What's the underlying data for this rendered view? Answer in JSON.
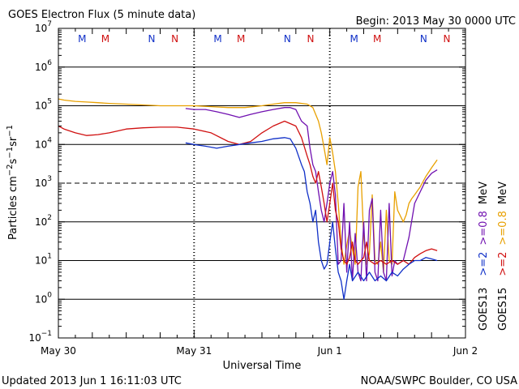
{
  "header": {
    "title": "GOES Electron Flux (5 minute data)",
    "begin": "Begin: 2013 May 30 0000 UTC"
  },
  "footer": {
    "updated": "Updated 2013 Jun  1 16:11:03 UTC",
    "credit": "NOAA/SWPC Boulder, CO USA"
  },
  "chart_data": {
    "type": "line",
    "title": "GOES Electron Flux (5 minute data)",
    "xlabel": "Universal Time",
    "ylabel": "Particles cm⁻²s⁻¹sr⁻¹",
    "yscale": "log",
    "ylim": [
      0.1,
      10000000
    ],
    "xlim": [
      0,
      72
    ],
    "x_units": "hours since 2013 May 30 0000 UTC",
    "x_ticks": [
      {
        "x": 0,
        "label": "May 30"
      },
      {
        "x": 24,
        "label": "May 31"
      },
      {
        "x": 48,
        "label": "Jun 1"
      },
      {
        "x": 72,
        "label": "Jun 2"
      }
    ],
    "y_ticks": [
      {
        "exp": 7
      },
      {
        "exp": 6
      },
      {
        "exp": 5
      },
      {
        "exp": 4
      },
      {
        "exp": 3
      },
      {
        "exp": 2
      },
      {
        "exp": 1
      },
      {
        "exp": 0
      },
      {
        "exp": -1
      }
    ],
    "threshold_line": 1000,
    "grid": true,
    "markers": [
      {
        "x": 4.2,
        "label": "M",
        "color": "#1030c8"
      },
      {
        "x": 8.3,
        "label": "M",
        "color": "#d01010"
      },
      {
        "x": 16.5,
        "label": "N",
        "color": "#1030c8"
      },
      {
        "x": 20.6,
        "label": "N",
        "color": "#d01010"
      },
      {
        "x": 28.2,
        "label": "M",
        "color": "#1030c8"
      },
      {
        "x": 32.3,
        "label": "M",
        "color": "#d01010"
      },
      {
        "x": 40.5,
        "label": "N",
        "color": "#1030c8"
      },
      {
        "x": 44.6,
        "label": "N",
        "color": "#d01010"
      },
      {
        "x": 52.3,
        "label": "M",
        "color": "#1030c8"
      },
      {
        "x": 56.4,
        "label": "M",
        "color": "#d01010"
      },
      {
        "x": 64.6,
        "label": "N",
        "color": "#1030c8"
      },
      {
        "x": 68.7,
        "label": "N",
        "color": "#d01010"
      }
    ],
    "legend": [
      {
        "sat": "GOES13",
        "labels": [
          {
            "text": ">=2",
            "color": "#1030c8"
          },
          {
            "text": ">=0.8",
            "color": "#7010b0"
          },
          {
            "text": "MeV",
            "color": "#000000"
          }
        ]
      },
      {
        "sat": "GOES15",
        "labels": [
          {
            "text": ">=2",
            "color": "#d01010"
          },
          {
            "text": ">=0.8",
            "color": "#e8a000"
          },
          {
            "text": "MeV",
            "color": "#000000"
          }
        ]
      }
    ],
    "series": [
      {
        "name": "GOES15 >=0.8 MeV",
        "color": "#e8a000",
        "points": [
          [
            0,
            150000
          ],
          [
            1,
            140000
          ],
          [
            3,
            130000
          ],
          [
            5,
            125000
          ],
          [
            7,
            120000
          ],
          [
            9,
            115000
          ],
          [
            12,
            110000
          ],
          [
            15,
            105000
          ],
          [
            18,
            100000
          ],
          [
            21,
            100000
          ],
          [
            24,
            100000
          ],
          [
            27,
            95000
          ],
          [
            30,
            90000
          ],
          [
            33,
            90000
          ],
          [
            36,
            100000
          ],
          [
            38,
            110000
          ],
          [
            40,
            120000
          ],
          [
            42,
            120000
          ],
          [
            44,
            110000
          ],
          [
            45,
            90000
          ],
          [
            46,
            40000
          ],
          [
            46.5,
            20000
          ],
          [
            47,
            8000
          ],
          [
            47.5,
            3000
          ],
          [
            48,
            15000
          ],
          [
            48.5,
            6000
          ],
          [
            49,
            2000
          ],
          [
            49.5,
            300
          ],
          [
            50,
            30
          ],
          [
            50.5,
            8
          ],
          [
            51,
            25
          ],
          [
            51.5,
            60
          ],
          [
            52,
            20
          ],
          [
            52.5,
            8
          ],
          [
            53,
            800
          ],
          [
            53.5,
            2000
          ],
          [
            54,
            40
          ],
          [
            54.5,
            8
          ],
          [
            55,
            15
          ],
          [
            55.5,
            500
          ],
          [
            56,
            10
          ],
          [
            56.5,
            8
          ],
          [
            57,
            30
          ],
          [
            57.5,
            5
          ],
          [
            58,
            200
          ],
          [
            58.5,
            10
          ],
          [
            59,
            8
          ],
          [
            59.5,
            600
          ],
          [
            60,
            200
          ],
          [
            61,
            100
          ],
          [
            61.5,
            150
          ],
          [
            62,
            300
          ],
          [
            62.5,
            400
          ],
          [
            63,
            500
          ],
          [
            64,
            800
          ],
          [
            65,
            1500
          ],
          [
            66,
            2500
          ],
          [
            67,
            4000
          ]
        ]
      },
      {
        "name": "GOES13 >=0.8 MeV",
        "color": "#7010b0",
        "points": [
          [
            22.5,
            85000
          ],
          [
            24,
            80000
          ],
          [
            26,
            80000
          ],
          [
            28,
            70000
          ],
          [
            30,
            60000
          ],
          [
            32,
            50000
          ],
          [
            34,
            60000
          ],
          [
            36,
            70000
          ],
          [
            38,
            80000
          ],
          [
            40,
            90000
          ],
          [
            41,
            90000
          ],
          [
            42,
            80000
          ],
          [
            43,
            40000
          ],
          [
            44,
            30000
          ],
          [
            44.5,
            8000
          ],
          [
            45,
            3000
          ],
          [
            45.5,
            2000
          ],
          [
            46,
            600
          ],
          [
            46.5,
            200
          ],
          [
            47,
            100
          ],
          [
            47.5,
            300
          ],
          [
            48,
            1000
          ],
          [
            48.5,
            2000
          ],
          [
            49,
            500
          ],
          [
            49.5,
            8
          ],
          [
            50,
            10
          ],
          [
            50.5,
            300
          ],
          [
            51,
            5
          ],
          [
            51.5,
            100
          ],
          [
            52,
            3
          ],
          [
            52.5,
            50
          ],
          [
            53,
            5
          ],
          [
            53.5,
            3
          ],
          [
            54,
            100
          ],
          [
            54.5,
            3
          ],
          [
            55,
            200
          ],
          [
            55.5,
            400
          ],
          [
            56,
            5
          ],
          [
            56.5,
            3
          ],
          [
            57,
            200
          ],
          [
            57.5,
            5
          ],
          [
            58,
            3
          ],
          [
            58.5,
            300
          ],
          [
            59,
            4
          ],
          [
            59.5,
            10
          ],
          [
            60,
            8
          ],
          [
            61,
            10
          ],
          [
            62,
            40
          ],
          [
            63,
            300
          ],
          [
            64,
            600
          ],
          [
            65,
            1200
          ],
          [
            66,
            1800
          ],
          [
            67,
            2200
          ]
        ]
      },
      {
        "name": "GOES15 >=2 MeV",
        "color": "#d01010",
        "points": [
          [
            0,
            30000
          ],
          [
            1,
            25000
          ],
          [
            3,
            20000
          ],
          [
            5,
            17000
          ],
          [
            7,
            18000
          ],
          [
            9,
            20000
          ],
          [
            12,
            25000
          ],
          [
            15,
            27000
          ],
          [
            18,
            28000
          ],
          [
            21,
            28000
          ],
          [
            24,
            25000
          ],
          [
            27,
            20000
          ],
          [
            30,
            12000
          ],
          [
            32,
            10000
          ],
          [
            34,
            12000
          ],
          [
            36,
            20000
          ],
          [
            38,
            30000
          ],
          [
            40,
            40000
          ],
          [
            42,
            30000
          ],
          [
            43,
            15000
          ],
          [
            44,
            5000
          ],
          [
            44.5,
            3000
          ],
          [
            45,
            1500
          ],
          [
            45.5,
            1000
          ],
          [
            46,
            2000
          ],
          [
            46.5,
            800
          ],
          [
            47,
            300
          ],
          [
            47.5,
            100
          ],
          [
            48,
            300
          ],
          [
            48.5,
            1000
          ],
          [
            49,
            200
          ],
          [
            49.5,
            100
          ],
          [
            50,
            20
          ],
          [
            50.5,
            10
          ],
          [
            51,
            8
          ],
          [
            51.5,
            12
          ],
          [
            52,
            30
          ],
          [
            52.5,
            10
          ],
          [
            53,
            8
          ],
          [
            54,
            12
          ],
          [
            54.5,
            30
          ],
          [
            55,
            10
          ],
          [
            56,
            8
          ],
          [
            57,
            10
          ],
          [
            58,
            8
          ],
          [
            59,
            10
          ],
          [
            60,
            8
          ],
          [
            61,
            10
          ],
          [
            62,
            8
          ],
          [
            63,
            12
          ],
          [
            64,
            15
          ],
          [
            65,
            18
          ],
          [
            66,
            20
          ],
          [
            67,
            18
          ]
        ]
      },
      {
        "name": "GOES13 >=2 MeV",
        "color": "#1030c8",
        "points": [
          [
            22.5,
            11000
          ],
          [
            24,
            10000
          ],
          [
            26,
            9000
          ],
          [
            28,
            8000
          ],
          [
            30,
            9000
          ],
          [
            32,
            10000
          ],
          [
            34,
            11000
          ],
          [
            36,
            12000
          ],
          [
            38,
            14000
          ],
          [
            40,
            15000
          ],
          [
            41,
            14000
          ],
          [
            42,
            8000
          ],
          [
            43,
            3000
          ],
          [
            43.5,
            2000
          ],
          [
            44,
            600
          ],
          [
            44.5,
            300
          ],
          [
            45,
            100
          ],
          [
            45.5,
            200
          ],
          [
            46,
            30
          ],
          [
            46.5,
            10
          ],
          [
            47,
            6
          ],
          [
            47.5,
            8
          ],
          [
            48,
            30
          ],
          [
            48.5,
            100
          ],
          [
            49,
            20
          ],
          [
            49.5,
            5
          ],
          [
            50,
            3
          ],
          [
            50.5,
            1
          ],
          [
            51,
            3
          ],
          [
            51.5,
            8
          ],
          [
            52,
            3
          ],
          [
            53,
            5
          ],
          [
            54,
            3
          ],
          [
            55,
            5
          ],
          [
            56,
            3
          ],
          [
            57,
            4
          ],
          [
            58,
            3
          ],
          [
            59,
            5
          ],
          [
            60,
            4
          ],
          [
            61,
            6
          ],
          [
            62,
            8
          ],
          [
            63,
            10
          ],
          [
            64,
            10
          ],
          [
            65,
            12
          ],
          [
            66,
            11
          ],
          [
            67,
            10
          ]
        ]
      }
    ]
  }
}
